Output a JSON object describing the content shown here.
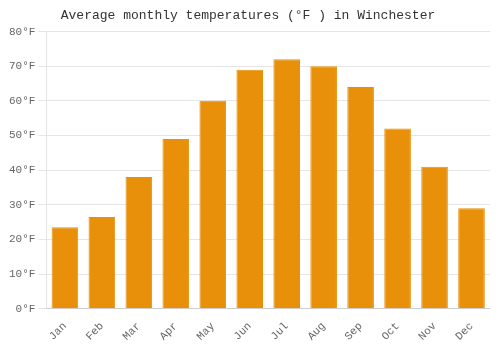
{
  "chart_data": {
    "type": "bar",
    "title": "Average monthly temperatures (°F ) in Winchester",
    "categories": [
      "Jan",
      "Feb",
      "Mar",
      "Apr",
      "May",
      "Jun",
      "Jul",
      "Aug",
      "Sep",
      "Oct",
      "Nov",
      "Dec"
    ],
    "values": [
      23.5,
      26.5,
      38.0,
      49.0,
      60.0,
      69.0,
      72.0,
      70.0,
      64.0,
      52.0,
      41.0,
      29.0
    ],
    "color": "#E8900A",
    "ylim": [
      0,
      80
    ],
    "yticks": [
      {
        "value": 0,
        "label": "0°F"
      },
      {
        "value": 10,
        "label": "10°F"
      },
      {
        "value": 20,
        "label": "20°F"
      },
      {
        "value": 30,
        "label": "30°F"
      },
      {
        "value": 40,
        "label": "40°F"
      },
      {
        "value": 50,
        "label": "50°F"
      },
      {
        "value": 60,
        "label": "60°F"
      },
      {
        "value": 70,
        "label": "70°F"
      },
      {
        "value": 80,
        "label": "80°F"
      }
    ],
    "grid": true
  }
}
